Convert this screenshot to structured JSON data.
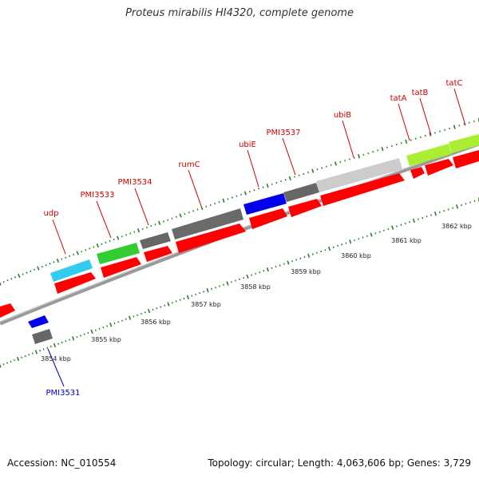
{
  "title": "Proteus mirabilis HI4320, complete genome",
  "footer": {
    "accession": "Accession: NC_010554",
    "summary": "Topology: circular; Length: 4,063,606 bp; Genes: 3,729"
  },
  "colors": {
    "backbone": "#8c8c8c",
    "tick": "#2a7d2a",
    "cds": "#ff0000",
    "gene_label": "#cc0000",
    "gene_label_blue": "#0000cc",
    "light_blue": "#33ccee",
    "green": "#33cc33",
    "dark_gray": "#666666",
    "blue": "#0000ee",
    "light_gray": "#cccccc",
    "yellow_green": "#aaee33"
  },
  "scale_labels": [
    "3854 kbp",
    "3855 kbp",
    "3856 kbp",
    "3857 kbp",
    "3858 kbp",
    "3859 kbp",
    "3860 kbp",
    "3861 kbp",
    "3862 kbp"
  ],
  "gene_labels": [
    "udp",
    "PMI3533",
    "PMI3534",
    "rumC",
    "ubiE",
    "PMI3537",
    "ubiB",
    "tatA",
    "tatB",
    "tatC",
    "PMI3531"
  ]
}
